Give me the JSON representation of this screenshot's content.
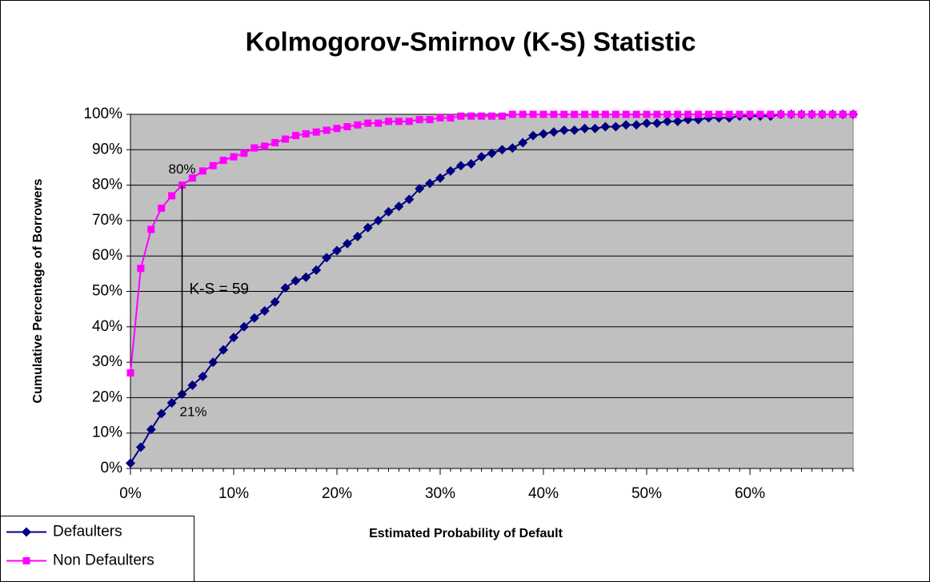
{
  "chart_data": {
    "type": "line",
    "title": "Kolmogorov-Smirnov (K-S) Statistic",
    "xlabel": "Estimated Probability of Default",
    "ylabel": "Cumulative Percentage of Borrowers",
    "x": [
      0,
      1,
      2,
      3,
      4,
      5,
      6,
      7,
      8,
      9,
      10,
      11,
      12,
      13,
      14,
      15,
      16,
      17,
      18,
      19,
      20,
      21,
      22,
      23,
      24,
      25,
      26,
      27,
      28,
      29,
      30,
      31,
      32,
      33,
      34,
      35,
      36,
      37,
      38,
      39,
      40,
      41,
      42,
      43,
      44,
      45,
      46,
      47,
      48,
      49,
      50,
      51,
      52,
      53,
      54,
      55,
      56,
      57,
      58,
      59,
      60,
      61,
      62,
      63,
      64,
      65,
      66,
      67,
      68,
      69,
      70
    ],
    "series": [
      {
        "name": "Defaulters",
        "color": "#000080",
        "marker": "diamond",
        "values": [
          1.5,
          6,
          11,
          15.5,
          18.5,
          21,
          23.5,
          26,
          30,
          33.5,
          37,
          40,
          42.5,
          44.5,
          47,
          51,
          53,
          54,
          56,
          59.5,
          61.5,
          63.5,
          65.5,
          68,
          70,
          72.5,
          74,
          76,
          79,
          80.5,
          82,
          84,
          85.5,
          86,
          88,
          89,
          90,
          90.5,
          92,
          94,
          94.5,
          95,
          95.5,
          95.5,
          96,
          96,
          96.5,
          96.5,
          97,
          97,
          97.5,
          97.5,
          98,
          98,
          98.5,
          98.5,
          99,
          99,
          99,
          99.5,
          99.5,
          99.5,
          99.5,
          100,
          100,
          100,
          100,
          100,
          100,
          100,
          100
        ]
      },
      {
        "name": "Non Defaulters",
        "color": "#ff00ff",
        "marker": "square",
        "values": [
          27,
          56.5,
          67.5,
          73.5,
          77,
          80,
          82,
          84,
          85.5,
          87,
          88,
          89,
          90.5,
          91,
          92,
          93,
          94,
          94.5,
          95,
          95.5,
          96,
          96.5,
          97,
          97.5,
          97.5,
          98,
          98,
          98,
          98.5,
          98.5,
          99,
          99,
          99.5,
          99.5,
          99.5,
          99.5,
          99.5,
          100,
          100,
          100,
          100,
          100,
          100,
          100,
          100,
          100,
          100,
          100,
          100,
          100,
          100,
          100,
          100,
          100,
          100,
          100,
          100,
          100,
          100,
          100,
          100,
          100,
          100,
          100,
          100,
          100,
          100,
          100,
          100,
          100,
          100
        ]
      }
    ],
    "annotations": {
      "upper": "80%",
      "lower": "21%",
      "ks": "K-S = 59",
      "index": 5
    },
    "xlim": [
      0,
      70
    ],
    "xticks": [
      {
        "value": 0,
        "label": "0%"
      },
      {
        "value": 10,
        "label": "10%"
      },
      {
        "value": 20,
        "label": "20%"
      },
      {
        "value": 30,
        "label": "30%"
      },
      {
        "value": 40,
        "label": "40%"
      },
      {
        "value": 50,
        "label": "50%"
      },
      {
        "value": 60,
        "label": "60%"
      }
    ],
    "ylim": [
      0,
      100
    ],
    "yticks": [
      {
        "value": 0,
        "label": "0%"
      },
      {
        "value": 10,
        "label": "10%"
      },
      {
        "value": 20,
        "label": "20%"
      },
      {
        "value": 30,
        "label": "30%"
      },
      {
        "value": 40,
        "label": "40%"
      },
      {
        "value": 50,
        "label": "50%"
      },
      {
        "value": 60,
        "label": "60%"
      },
      {
        "value": 70,
        "label": "70%"
      },
      {
        "value": 80,
        "label": "80%"
      },
      {
        "value": 90,
        "label": "90%"
      },
      {
        "value": 100,
        "label": "100%"
      }
    ],
    "grid": true,
    "plot_background": "#c0c0c0",
    "legend": "bottom-left"
  }
}
